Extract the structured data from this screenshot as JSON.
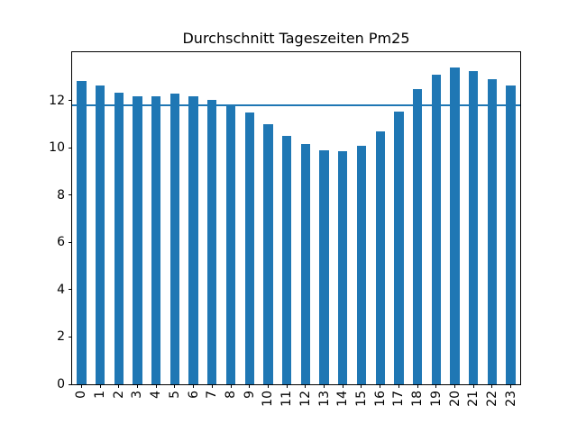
{
  "chart_data": {
    "type": "bar",
    "title": "Durchschnitt Tageszeiten Pm25",
    "xlabel": "",
    "ylabel": "",
    "categories": [
      "0",
      "1",
      "2",
      "3",
      "4",
      "5",
      "6",
      "7",
      "8",
      "9",
      "10",
      "11",
      "12",
      "13",
      "14",
      "15",
      "16",
      "17",
      "18",
      "19",
      "20",
      "21",
      "22",
      "23"
    ],
    "values": [
      12.85,
      12.65,
      12.35,
      12.2,
      12.2,
      12.3,
      12.2,
      12.05,
      11.8,
      11.5,
      11.0,
      10.5,
      10.15,
      9.9,
      9.85,
      10.1,
      10.7,
      11.55,
      12.5,
      13.1,
      13.4,
      13.25,
      12.9,
      12.65
    ],
    "mean_line": 11.82,
    "ylim": [
      0,
      14.05
    ],
    "yticks": [
      0,
      2,
      4,
      6,
      8,
      10,
      12
    ],
    "x_tick_rotation": 90,
    "grid": false,
    "legend": null,
    "bar_color": "#1f77b4",
    "line_color": "#1f77b4",
    "background_color": "#ffffff"
  }
}
